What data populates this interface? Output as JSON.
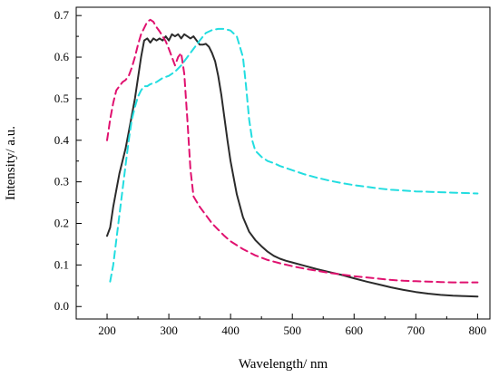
{
  "chart_data": {
    "type": "line",
    "title": "",
    "xlabel": "Wavelength/ nm",
    "ylabel": "Intensity/ a.u.",
    "xlim": [
      150,
      820
    ],
    "ylim": [
      -0.03,
      0.72
    ],
    "xticks": [
      200,
      300,
      400,
      500,
      600,
      700,
      800
    ],
    "yticks": [
      0.0,
      0.1,
      0.2,
      0.3,
      0.4,
      0.5,
      0.6,
      0.7
    ],
    "grid": false,
    "legend": "none",
    "series": [
      {
        "color": "#2b2b2b",
        "dash": "solid",
        "x": [
          200,
          205,
          210,
          215,
          220,
          225,
          230,
          235,
          240,
          245,
          250,
          255,
          260,
          265,
          270,
          275,
          280,
          285,
          290,
          295,
          300,
          305,
          310,
          315,
          320,
          325,
          330,
          335,
          340,
          345,
          350,
          355,
          360,
          365,
          370,
          375,
          380,
          385,
          390,
          395,
          400,
          410,
          420,
          430,
          440,
          450,
          460,
          470,
          480,
          490,
          500,
          520,
          540,
          560,
          580,
          600,
          620,
          640,
          660,
          680,
          700,
          720,
          740,
          760,
          780,
          800
        ],
        "y": [
          0.17,
          0.19,
          0.24,
          0.28,
          0.32,
          0.35,
          0.38,
          0.42,
          0.46,
          0.5,
          0.55,
          0.6,
          0.64,
          0.645,
          0.635,
          0.645,
          0.64,
          0.645,
          0.64,
          0.65,
          0.64,
          0.655,
          0.65,
          0.655,
          0.645,
          0.655,
          0.65,
          0.645,
          0.65,
          0.64,
          0.63,
          0.63,
          0.632,
          0.625,
          0.61,
          0.59,
          0.555,
          0.51,
          0.455,
          0.4,
          0.35,
          0.27,
          0.215,
          0.18,
          0.16,
          0.145,
          0.132,
          0.122,
          0.115,
          0.11,
          0.106,
          0.098,
          0.09,
          0.083,
          0.076,
          0.068,
          0.06,
          0.053,
          0.046,
          0.04,
          0.035,
          0.031,
          0.028,
          0.026,
          0.025,
          0.024
        ]
      },
      {
        "color": "#e0116f",
        "dash": "8,5",
        "x": [
          200,
          202,
          205,
          210,
          215,
          220,
          225,
          230,
          235,
          240,
          245,
          250,
          255,
          260,
          265,
          270,
          275,
          280,
          285,
          290,
          295,
          300,
          305,
          310,
          315,
          320,
          325,
          330,
          335,
          340,
          350,
          360,
          370,
          380,
          390,
          400,
          420,
          440,
          460,
          480,
          500,
          520,
          540,
          560,
          580,
          600,
          620,
          640,
          660,
          680,
          700,
          720,
          740,
          760,
          780,
          800
        ],
        "y": [
          0.4,
          0.42,
          0.45,
          0.49,
          0.52,
          0.53,
          0.54,
          0.545,
          0.555,
          0.575,
          0.6,
          0.63,
          0.655,
          0.67,
          0.685,
          0.69,
          0.685,
          0.672,
          0.662,
          0.65,
          0.638,
          0.62,
          0.6,
          0.58,
          0.6,
          0.61,
          0.56,
          0.45,
          0.33,
          0.265,
          0.24,
          0.22,
          0.2,
          0.185,
          0.17,
          0.157,
          0.138,
          0.123,
          0.112,
          0.104,
          0.097,
          0.091,
          0.086,
          0.081,
          0.077,
          0.073,
          0.07,
          0.067,
          0.064,
          0.062,
          0.061,
          0.06,
          0.059,
          0.058,
          0.058,
          0.058
        ]
      },
      {
        "color": "#22dde0",
        "dash": "8,5",
        "x": [
          205,
          210,
          215,
          220,
          225,
          230,
          235,
          240,
          245,
          250,
          255,
          260,
          265,
          270,
          280,
          290,
          300,
          310,
          320,
          330,
          340,
          350,
          360,
          370,
          380,
          390,
          400,
          410,
          420,
          425,
          430,
          435,
          440,
          450,
          460,
          470,
          480,
          500,
          520,
          540,
          560,
          580,
          600,
          620,
          640,
          660,
          680,
          700,
          720,
          740,
          760,
          780,
          800
        ],
        "y": [
          0.06,
          0.1,
          0.16,
          0.22,
          0.28,
          0.34,
          0.4,
          0.45,
          0.48,
          0.505,
          0.52,
          0.53,
          0.53,
          0.535,
          0.54,
          0.55,
          0.555,
          0.565,
          0.58,
          0.6,
          0.62,
          0.64,
          0.658,
          0.665,
          0.668,
          0.668,
          0.664,
          0.65,
          0.6,
          0.53,
          0.45,
          0.4,
          0.375,
          0.36,
          0.35,
          0.345,
          0.338,
          0.328,
          0.318,
          0.31,
          0.303,
          0.297,
          0.292,
          0.288,
          0.284,
          0.281,
          0.279,
          0.277,
          0.276,
          0.275,
          0.274,
          0.273,
          0.272
        ]
      }
    ]
  }
}
